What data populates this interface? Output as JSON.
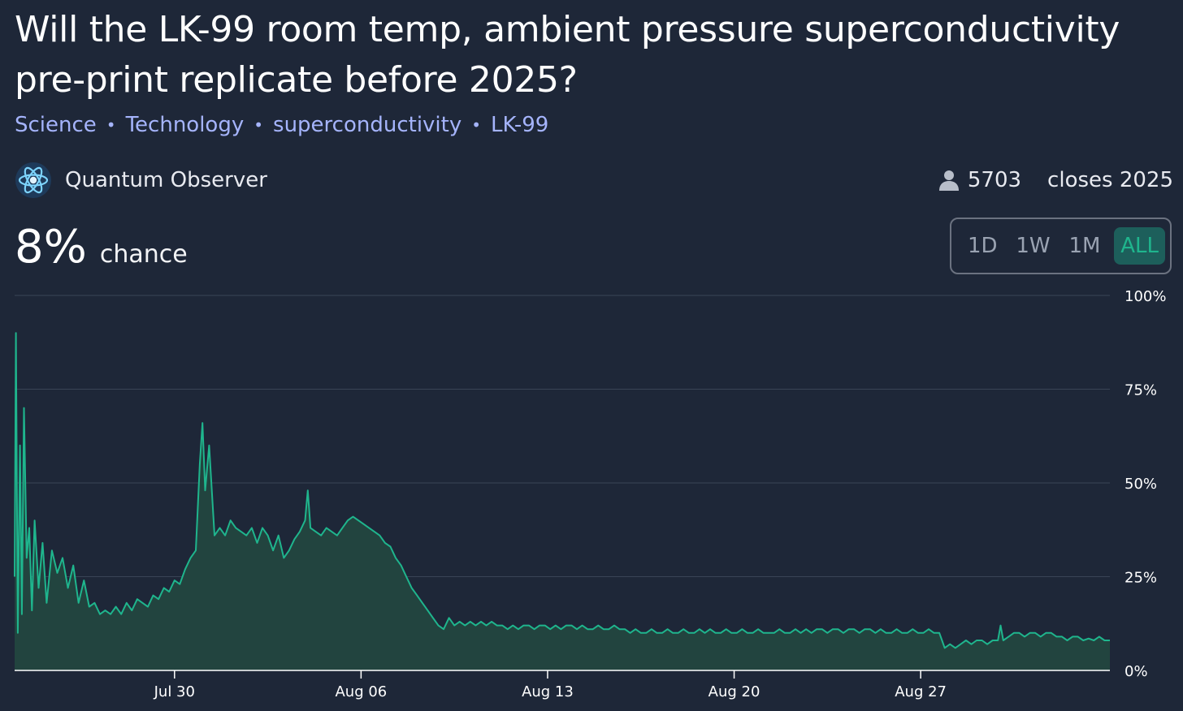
{
  "title": "Will the LK-99 room temp, ambient pressure superconductivity pre-print replicate before 2025?",
  "tags": [
    "Science",
    "Technology",
    "superconductivity",
    "LK-99"
  ],
  "creator": {
    "name": "Quantum Observer",
    "icon": "atom-icon"
  },
  "traders": "5703",
  "closes": "closes 2025",
  "probability": {
    "value": "8%",
    "label": "chance"
  },
  "range_buttons": [
    {
      "label": "1D",
      "active": false
    },
    {
      "label": "1W",
      "active": false
    },
    {
      "label": "1M",
      "active": false
    },
    {
      "label": "ALL",
      "active": true
    }
  ],
  "colors": {
    "background": "#1e2738",
    "line": "#1fb58d",
    "fill": "#22443f",
    "tag": "#a5b4fc"
  },
  "chart_data": {
    "type": "area",
    "x_start": "Jul 24",
    "x_end": "Sep 3",
    "ylim": [
      0,
      100
    ],
    "y_ticks": [
      "0%",
      "25%",
      "50%",
      "75%",
      "100%"
    ],
    "x_ticks": [
      {
        "label": "Jul 30",
        "day": 6
      },
      {
        "label": "Aug 06",
        "day": 13
      },
      {
        "label": "Aug 13",
        "day": 20
      },
      {
        "label": "Aug 20",
        "day": 27
      },
      {
        "label": "Aug 27",
        "day": 34
      }
    ],
    "series": [
      {
        "points": [
          [
            0.0,
            25
          ],
          [
            0.05,
            90
          ],
          [
            0.12,
            10
          ],
          [
            0.2,
            60
          ],
          [
            0.27,
            15
          ],
          [
            0.35,
            70
          ],
          [
            0.45,
            30
          ],
          [
            0.55,
            38
          ],
          [
            0.65,
            16
          ],
          [
            0.75,
            40
          ],
          [
            0.9,
            22
          ],
          [
            1.05,
            34
          ],
          [
            1.2,
            18
          ],
          [
            1.4,
            32
          ],
          [
            1.6,
            26
          ],
          [
            1.8,
            30
          ],
          [
            2.0,
            22
          ],
          [
            2.2,
            28
          ],
          [
            2.4,
            18
          ],
          [
            2.6,
            24
          ],
          [
            2.8,
            17
          ],
          [
            3.0,
            18
          ],
          [
            3.2,
            15
          ],
          [
            3.4,
            16
          ],
          [
            3.6,
            15
          ],
          [
            3.8,
            17
          ],
          [
            4.0,
            15
          ],
          [
            4.2,
            18
          ],
          [
            4.4,
            16
          ],
          [
            4.6,
            19
          ],
          [
            4.8,
            18
          ],
          [
            5.0,
            17
          ],
          [
            5.2,
            20
          ],
          [
            5.4,
            19
          ],
          [
            5.6,
            22
          ],
          [
            5.8,
            21
          ],
          [
            6.0,
            24
          ],
          [
            6.2,
            23
          ],
          [
            6.4,
            27
          ],
          [
            6.6,
            30
          ],
          [
            6.8,
            32
          ],
          [
            6.95,
            55
          ],
          [
            7.05,
            66
          ],
          [
            7.15,
            48
          ],
          [
            7.3,
            60
          ],
          [
            7.5,
            36
          ],
          [
            7.7,
            38
          ],
          [
            7.9,
            36
          ],
          [
            8.1,
            40
          ],
          [
            8.3,
            38
          ],
          [
            8.5,
            37
          ],
          [
            8.7,
            36
          ],
          [
            8.9,
            38
          ],
          [
            9.1,
            34
          ],
          [
            9.3,
            38
          ],
          [
            9.5,
            36
          ],
          [
            9.7,
            32
          ],
          [
            9.9,
            36
          ],
          [
            10.1,
            30
          ],
          [
            10.3,
            32
          ],
          [
            10.5,
            35
          ],
          [
            10.7,
            37
          ],
          [
            10.9,
            40
          ],
          [
            11.0,
            48
          ],
          [
            11.1,
            38
          ],
          [
            11.3,
            37
          ],
          [
            11.5,
            36
          ],
          [
            11.7,
            38
          ],
          [
            11.9,
            37
          ],
          [
            12.1,
            36
          ],
          [
            12.3,
            38
          ],
          [
            12.5,
            40
          ],
          [
            12.7,
            41
          ],
          [
            12.9,
            40
          ],
          [
            13.1,
            39
          ],
          [
            13.3,
            38
          ],
          [
            13.5,
            37
          ],
          [
            13.7,
            36
          ],
          [
            13.9,
            34
          ],
          [
            14.1,
            33
          ],
          [
            14.3,
            30
          ],
          [
            14.5,
            28
          ],
          [
            14.7,
            25
          ],
          [
            14.9,
            22
          ],
          [
            15.1,
            20
          ],
          [
            15.3,
            18
          ],
          [
            15.5,
            16
          ],
          [
            15.7,
            14
          ],
          [
            15.9,
            12
          ],
          [
            16.1,
            11
          ],
          [
            16.3,
            14
          ],
          [
            16.5,
            12
          ],
          [
            16.7,
            13
          ],
          [
            16.9,
            12
          ],
          [
            17.1,
            13
          ],
          [
            17.3,
            12
          ],
          [
            17.5,
            13
          ],
          [
            17.7,
            12
          ],
          [
            17.9,
            13
          ],
          [
            18.1,
            12
          ],
          [
            18.3,
            12
          ],
          [
            18.5,
            11
          ],
          [
            18.7,
            12
          ],
          [
            18.9,
            11
          ],
          [
            19.1,
            12
          ],
          [
            19.3,
            12
          ],
          [
            19.5,
            11
          ],
          [
            19.7,
            12
          ],
          [
            19.9,
            12
          ],
          [
            20.1,
            11
          ],
          [
            20.3,
            12
          ],
          [
            20.5,
            11
          ],
          [
            20.7,
            12
          ],
          [
            20.9,
            12
          ],
          [
            21.1,
            11
          ],
          [
            21.3,
            12
          ],
          [
            21.5,
            11
          ],
          [
            21.7,
            11
          ],
          [
            21.9,
            12
          ],
          [
            22.1,
            11
          ],
          [
            22.3,
            11
          ],
          [
            22.5,
            12
          ],
          [
            22.7,
            11
          ],
          [
            22.9,
            11
          ],
          [
            23.1,
            10
          ],
          [
            23.3,
            11
          ],
          [
            23.5,
            10
          ],
          [
            23.7,
            10
          ],
          [
            23.9,
            11
          ],
          [
            24.1,
            10
          ],
          [
            24.3,
            10
          ],
          [
            24.5,
            11
          ],
          [
            24.7,
            10
          ],
          [
            24.9,
            10
          ],
          [
            25.1,
            11
          ],
          [
            25.3,
            10
          ],
          [
            25.5,
            10
          ],
          [
            25.7,
            11
          ],
          [
            25.9,
            10
          ],
          [
            26.1,
            11
          ],
          [
            26.3,
            10
          ],
          [
            26.5,
            10
          ],
          [
            26.7,
            11
          ],
          [
            26.9,
            10
          ],
          [
            27.1,
            10
          ],
          [
            27.3,
            11
          ],
          [
            27.5,
            10
          ],
          [
            27.7,
            10
          ],
          [
            27.9,
            11
          ],
          [
            28.1,
            10
          ],
          [
            28.3,
            10
          ],
          [
            28.5,
            10
          ],
          [
            28.7,
            11
          ],
          [
            28.9,
            10
          ],
          [
            29.1,
            10
          ],
          [
            29.3,
            11
          ],
          [
            29.5,
            10
          ],
          [
            29.7,
            11
          ],
          [
            29.9,
            10
          ],
          [
            30.1,
            11
          ],
          [
            30.3,
            11
          ],
          [
            30.5,
            10
          ],
          [
            30.7,
            11
          ],
          [
            30.9,
            11
          ],
          [
            31.1,
            10
          ],
          [
            31.3,
            11
          ],
          [
            31.5,
            11
          ],
          [
            31.7,
            10
          ],
          [
            31.9,
            11
          ],
          [
            32.1,
            11
          ],
          [
            32.3,
            10
          ],
          [
            32.5,
            11
          ],
          [
            32.7,
            10
          ],
          [
            32.9,
            10
          ],
          [
            33.1,
            11
          ],
          [
            33.3,
            10
          ],
          [
            33.5,
            10
          ],
          [
            33.7,
            11
          ],
          [
            33.9,
            10
          ],
          [
            34.1,
            10
          ],
          [
            34.3,
            11
          ],
          [
            34.5,
            10
          ],
          [
            34.7,
            10
          ],
          [
            34.8,
            8
          ],
          [
            34.9,
            6
          ],
          [
            35.1,
            7
          ],
          [
            35.3,
            6
          ],
          [
            35.5,
            7
          ],
          [
            35.7,
            8
          ],
          [
            35.9,
            7
          ],
          [
            36.1,
            8
          ],
          [
            36.3,
            8
          ],
          [
            36.5,
            7
          ],
          [
            36.7,
            8
          ],
          [
            36.9,
            8
          ],
          [
            37.0,
            12
          ],
          [
            37.1,
            8
          ],
          [
            37.3,
            9
          ],
          [
            37.5,
            10
          ],
          [
            37.7,
            10
          ],
          [
            37.9,
            9
          ],
          [
            38.1,
            10
          ],
          [
            38.3,
            10
          ],
          [
            38.5,
            9
          ],
          [
            38.7,
            10
          ],
          [
            38.9,
            10
          ],
          [
            39.1,
            9
          ],
          [
            39.3,
            9
          ],
          [
            39.5,
            8
          ],
          [
            39.7,
            9
          ],
          [
            39.9,
            9
          ],
          [
            40.1,
            8
          ],
          [
            40.3,
            8.5
          ],
          [
            40.5,
            8
          ],
          [
            40.7,
            9
          ],
          [
            40.9,
            8
          ],
          [
            41.1,
            8
          ]
        ]
      }
    ]
  }
}
